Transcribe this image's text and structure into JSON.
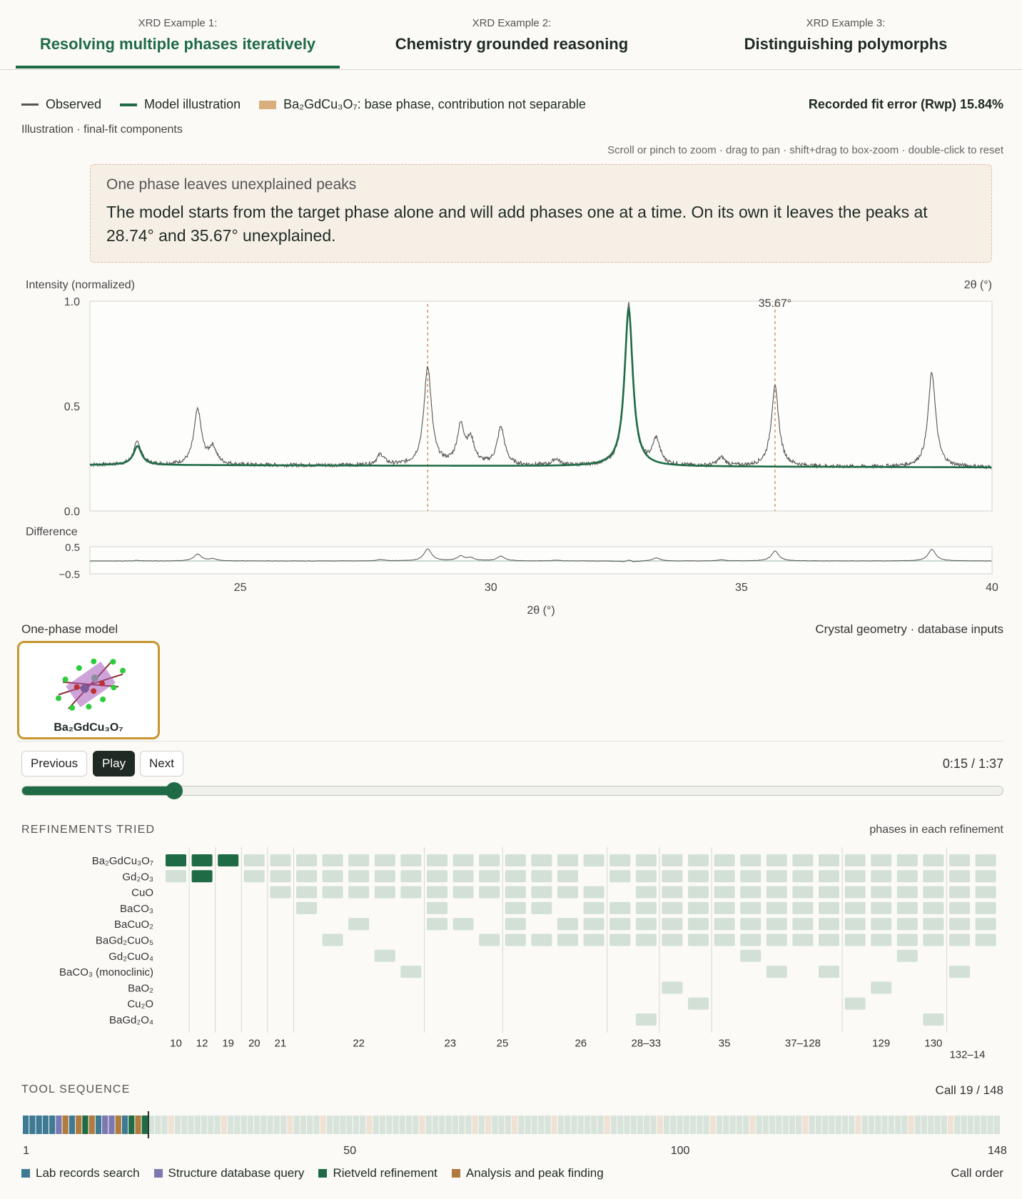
{
  "tabs": [
    {
      "sub": "XRD Example 1:",
      "main": "Resolving multiple phases iteratively",
      "active": true
    },
    {
      "sub": "XRD Example 2:",
      "main": "Chemistry grounded reasoning",
      "active": false
    },
    {
      "sub": "XRD Example 3:",
      "main": "Distinguishing polymorphs",
      "active": false
    }
  ],
  "legend": {
    "observed": "Observed",
    "model": "Model illustration",
    "phase_label": "Ba₂GdCu₃O₇: base phase, contribution not separable"
  },
  "rwp": "Recorded fit error (Rwp) 15.84%",
  "subtitle": "Illustration · final-fit components",
  "hint": "Scroll or pinch to zoom · drag to pan · shift+drag to box-zoom · double-click to reset",
  "callout": {
    "title": "One phase leaves unexplained peaks",
    "body": "The model starts from the target phase alone and will add phases one at a time. On its own it leaves the peaks at 28.74° and 35.67° unexplained."
  },
  "chart_data": {
    "type": "line",
    "ylabel": "Intensity (normalized)",
    "xlabel": "2θ (°)",
    "xlabel_top": "2θ (°)",
    "xlim": [
      22,
      40
    ],
    "ylim": [
      0,
      1
    ],
    "yticks": [
      "0.0",
      "0.5",
      "1.0"
    ],
    "xticks": [
      25,
      30,
      35,
      40
    ],
    "marker_lines": [
      28.74,
      35.67
    ],
    "marker_label": "35.67°",
    "diff_label": "Difference",
    "diff_yticks": [
      "0.5",
      "−0.5"
    ],
    "peaks_observed": [
      [
        22.95,
        0.33
      ],
      [
        24.15,
        0.48
      ],
      [
        24.45,
        0.3
      ],
      [
        27.8,
        0.27
      ],
      [
        28.74,
        0.69
      ],
      [
        29.4,
        0.4
      ],
      [
        29.6,
        0.33
      ],
      [
        30.2,
        0.4
      ],
      [
        31.3,
        0.25
      ],
      [
        32.75,
        1.0
      ],
      [
        33.3,
        0.34
      ],
      [
        34.6,
        0.26
      ],
      [
        35.67,
        0.6
      ],
      [
        38.8,
        0.67
      ]
    ],
    "model_peaks": [
      [
        22.95,
        0.31
      ],
      [
        32.75,
        0.97
      ],
      [
        38.8,
        0.22
      ]
    ],
    "baseline": 0.22
  },
  "model_section": {
    "left": "One-phase model",
    "right": "Crystal geometry · database inputs",
    "phase": "Ba₂GdCu₃O₇"
  },
  "controls": {
    "prev": "Previous",
    "play": "Play",
    "next": "Next",
    "time": "0:15 / 1:37",
    "progress": 0.155
  },
  "refinements": {
    "title": "REFINEMENTS TRIED",
    "right": "phases in each refinement",
    "phases": [
      "Ba₂GdCu₃O₇",
      "Gd₂O₃",
      "CuO",
      "BaCO₃",
      "BaCuO₂",
      "BaGd₂CuO₅",
      "Gd₂CuO₄",
      "BaCO₃ (monoclinic)",
      "BaO₂",
      "Cu₂O",
      "BaGd₂O₄"
    ],
    "group_labels": [
      "10",
      "12",
      "19",
      "20",
      "21",
      "22",
      "23",
      "25",
      "26",
      "28–33",
      "35",
      "37–128",
      "129",
      "130",
      "132–14"
    ]
  },
  "tools": {
    "title": "TOOL SEQUENCE",
    "call": "Call 19 / 148",
    "ticks": [
      "1",
      "50",
      "100",
      "148"
    ],
    "legend": [
      "Lab records search",
      "Structure database query",
      "Rietveld refinement",
      "Analysis and peak finding"
    ],
    "legend_colors": [
      "#3f7a94",
      "#7b78b2",
      "#1f6b45",
      "#b07b3e"
    ],
    "right": "Call order",
    "total": 148,
    "current": 19
  }
}
